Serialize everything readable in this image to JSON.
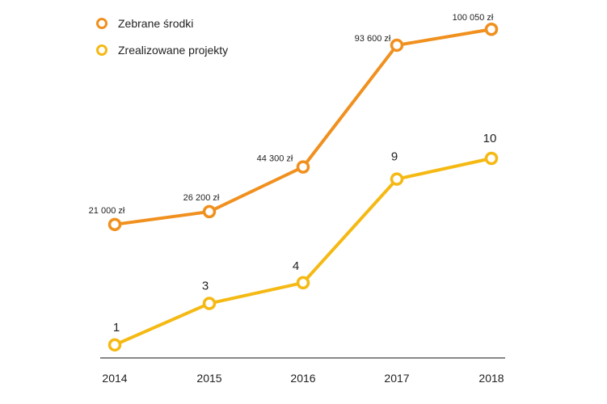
{
  "chart_data": {
    "type": "line",
    "categories": [
      "2014",
      "2015",
      "2016",
      "2017",
      "2018"
    ],
    "series": [
      {
        "name": "Zebrane środki",
        "values": [
          21000,
          26200,
          44300,
          93600,
          100050
        ],
        "labels": [
          "21 000 zł",
          "26 200 zł",
          "44 300 zł",
          "93 600 zł",
          "100 050 zł"
        ],
        "color": "#f0901e"
      },
      {
        "name": "Zrealizowane projekty",
        "values": [
          1,
          3,
          4,
          9,
          10
        ],
        "labels": [
          "1",
          "3",
          "4",
          "9",
          "10"
        ],
        "color": "#f5b914"
      }
    ],
    "title": "",
    "xlabel": "",
    "ylabel": "",
    "grid": false,
    "legend_position": "top-left"
  }
}
